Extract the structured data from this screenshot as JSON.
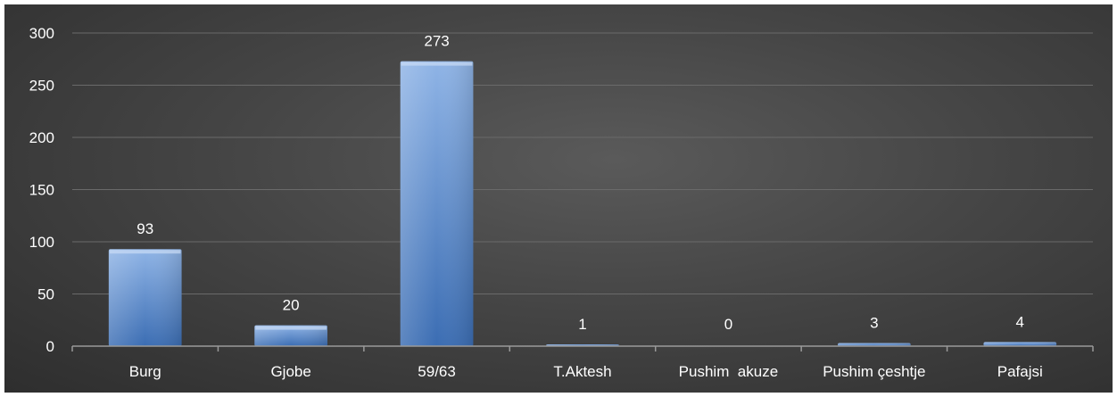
{
  "chart_data": {
    "type": "bar",
    "categories": [
      "Burg",
      "Gjobe",
      "59/63",
      "T.Aktesh",
      "Pushim  akuze",
      "Pushim çeshtje",
      "Pafajsi"
    ],
    "values": [
      93,
      20,
      273,
      1,
      0,
      3,
      4
    ],
    "data_labels": [
      "93",
      "20",
      "273",
      "1",
      "0",
      "3",
      "4"
    ],
    "y_ticks": [
      "0",
      "50",
      "100",
      "150",
      "200",
      "250",
      "300"
    ],
    "ylim": [
      0,
      300
    ],
    "grid": true,
    "legend": "none",
    "colors": {
      "bar_top": "#8fb4e6",
      "bar_bottom": "#3b6db3",
      "gridline": "#6a6a6a",
      "axis": "#9a9a9a",
      "text": "#ffffff"
    }
  }
}
